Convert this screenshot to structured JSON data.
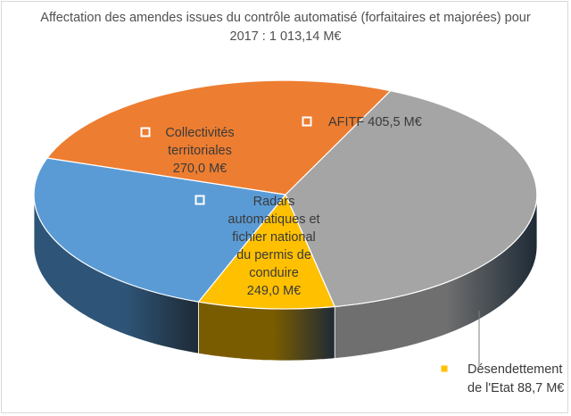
{
  "chart_data": {
    "type": "pie",
    "style": "3d",
    "title": "Affectation des amendes issues du contrôle automatisé (forfaitaires et majorées) pour 2017 : 1 013,14 M€",
    "unit": "M€",
    "slices": [
      {
        "key": "afitf",
        "label": "AFITF",
        "value": 405.5,
        "value_text": "405,5 M€",
        "color": "#a5a5a5",
        "dark": "#6f6f6f"
      },
      {
        "key": "desendettement",
        "label": "Désendettement de l'Etat",
        "value": 88.7,
        "value_text": "88,7 M€",
        "color": "#ffc000",
        "dark": "#7a5c00"
      },
      {
        "key": "radars",
        "label": "Radars automatiques et fichier national du permis de conduire",
        "value": 249.0,
        "value_text": "249,0 M€",
        "color": "#5b9bd5",
        "dark": "#2e5577"
      },
      {
        "key": "collectivites",
        "label": "Collectivités territoriales",
        "value": 270.0,
        "value_text": "270,0  M€",
        "color": "#ed7d31",
        "dark": "#9c4a12"
      }
    ],
    "data_labels": {
      "afitf": [
        "AFITF 405,5 M€"
      ],
      "desendettement": [
        "Désendettement",
        "de l'Etat 88,7 M€"
      ],
      "radars": [
        "Radars",
        "automatiques et",
        "fichier national",
        "du permis de",
        "conduire",
        "249,0 M€"
      ],
      "collectivites": [
        "Collectivités",
        "territoriales",
        "270,0  M€"
      ]
    },
    "legend": "none"
  }
}
